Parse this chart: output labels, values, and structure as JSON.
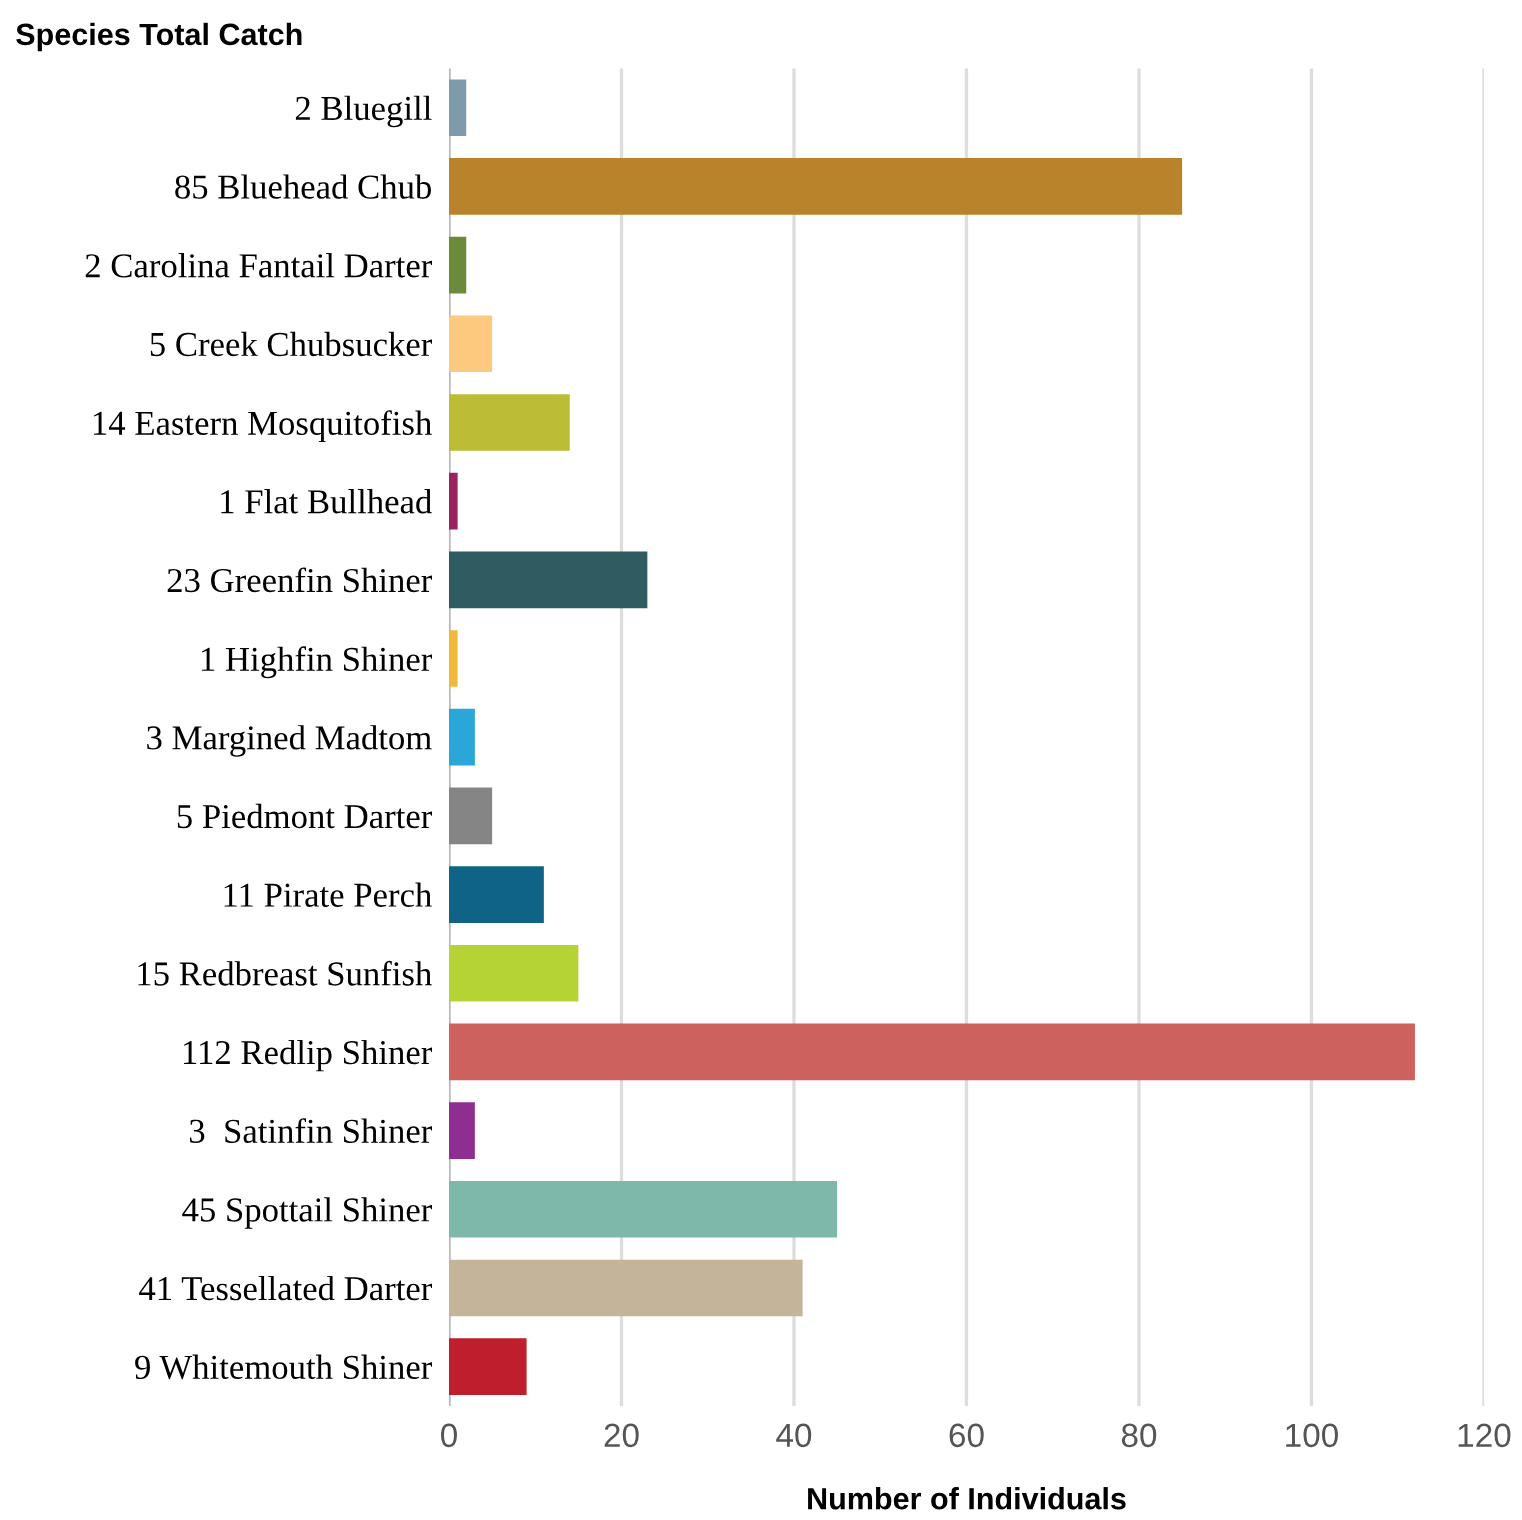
{
  "chart_data": {
    "type": "bar",
    "orientation": "horizontal",
    "ylabel": "Species Total Catch",
    "xlabel": "Number of Individuals",
    "categories": [
      "2 Bluegill",
      "85 Bluehead Chub",
      "2 Carolina Fantail Darter",
      "5 Creek Chubsucker",
      "14 Eastern Mosquitofish",
      "1 Flat Bullhead",
      "23 Greenfin Shiner",
      "1 Highfin Shiner",
      "3 Margined Madtom",
      "5 Piedmont Darter",
      "11 Pirate Perch",
      "15 Redbreast Sunfish",
      "112 Redlip Shiner",
      "3  Satinfin Shiner",
      "45 Spottail Shiner",
      "41 Tessellated Darter",
      "9 Whitemouth Shiner"
    ],
    "values": [
      2,
      85,
      2,
      5,
      14,
      1,
      23,
      1,
      3,
      5,
      11,
      15,
      112,
      3,
      45,
      41,
      9
    ],
    "colors": [
      "#7f9aaa",
      "#b8832a",
      "#6b8a3a",
      "#fdc97f",
      "#bcbd35",
      "#9b2260",
      "#2e5c61",
      "#f0b93a",
      "#2aa7d8",
      "#858585",
      "#0e6386",
      "#b5d334",
      "#cc615e",
      "#8e2e90",
      "#7eb8aa",
      "#c4b49a",
      "#bf1e2d"
    ],
    "xlim": [
      0,
      120
    ],
    "xticks": [
      0,
      20,
      40,
      60,
      80,
      100,
      120
    ],
    "grid": "x"
  }
}
